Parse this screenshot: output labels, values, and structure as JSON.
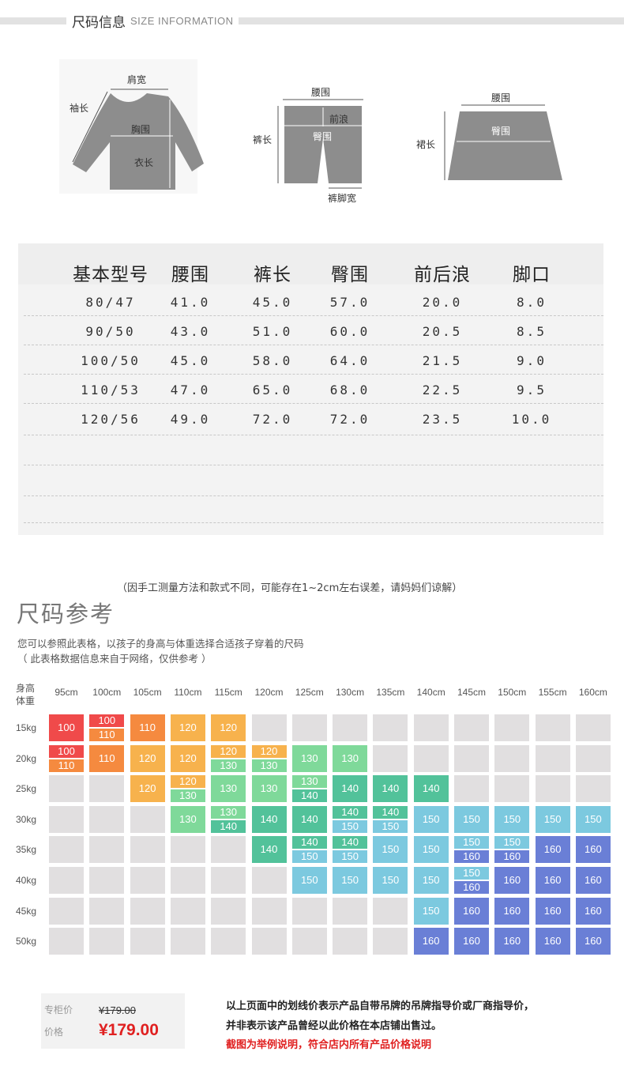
{
  "header": {
    "title": "尺码信息",
    "subtitle": "SIZE INFORMATION"
  },
  "diagrams": {
    "top": {
      "shoulder": "肩宽",
      "sleeve": "袖长",
      "chest": "胸围",
      "length": "衣长"
    },
    "pants": {
      "waist": "腰围",
      "rise": "前浪",
      "length": "裤长",
      "hip": "臀围",
      "leg_opening": "裤脚宽"
    },
    "skirt": {
      "waist": "腰围",
      "hip": "臀围",
      "length": "裙长"
    }
  },
  "size_table": {
    "headers": [
      "基本型号",
      "腰围",
      "裤长",
      "臀围",
      "前后浪",
      "脚口"
    ],
    "rows": [
      [
        "80/47",
        "41.0",
        "45.0",
        "57.0",
        "20.0",
        "8.0"
      ],
      [
        "90/50",
        "43.0",
        "51.0",
        "60.0",
        "20.5",
        "8.5"
      ],
      [
        "100/50",
        "45.0",
        "58.0",
        "64.0",
        "21.5",
        "9.0"
      ],
      [
        "110/53",
        "47.0",
        "65.0",
        "68.0",
        "22.5",
        "9.5"
      ],
      [
        "120/56",
        "49.0",
        "72.0",
        "72.0",
        "23.5",
        "10.0"
      ]
    ]
  },
  "note": "（因手工测量方法和款式不同，可能存在1~2cm左右误差，请妈妈们谅解）",
  "reference": {
    "title": "尺码参考",
    "desc": "您可以参照此表格，以孩子的身高与体重选择合适孩子穿着的尺码",
    "source": "（ 此表格数据信息来自于网络，仅供参考 ）",
    "corner_line1": "身高",
    "corner_line2": "体重",
    "heights": [
      "95cm",
      "100cm",
      "105cm",
      "110cm",
      "115cm",
      "120cm",
      "125cm",
      "130cm",
      "135cm",
      "140cm",
      "145cm",
      "150cm",
      "155cm",
      "160cm"
    ],
    "weights": [
      "15kg",
      "20kg",
      "25kg",
      "30kg",
      "35kg",
      "40kg",
      "45kg",
      "50kg"
    ],
    "grid": [
      [
        "100",
        "100/110",
        "110",
        "120",
        "120",
        "",
        "",
        "",
        "",
        "",
        "",
        "",
        "",
        ""
      ],
      [
        "100/110",
        "110",
        "120",
        "120",
        "120/130",
        "120/130",
        "130",
        "130",
        "",
        "",
        "",
        "",
        "",
        ""
      ],
      [
        "",
        "",
        "120",
        "120/130",
        "130",
        "130",
        "130/140",
        "140",
        "140",
        "140",
        "",
        "",
        "",
        ""
      ],
      [
        "",
        "",
        "",
        "130",
        "130/140",
        "140",
        "140",
        "140/150",
        "140/150",
        "150",
        "150",
        "150",
        "150",
        "150"
      ],
      [
        "",
        "",
        "",
        "",
        "",
        "140",
        "140/150",
        "140/150",
        "150",
        "150",
        "150/160",
        "150/160",
        "160",
        "160"
      ],
      [
        "",
        "",
        "",
        "",
        "",
        "",
        "150",
        "150",
        "150",
        "150",
        "150/160",
        "160",
        "160",
        "160"
      ],
      [
        "",
        "",
        "",
        "",
        "",
        "",
        "",
        "",
        "",
        "150",
        "160",
        "160",
        "160",
        "160"
      ],
      [
        "",
        "",
        "",
        "",
        "",
        "",
        "",
        "",
        "",
        "160",
        "160",
        "160",
        "160",
        "160"
      ]
    ],
    "colors": {
      "100": "#f04a4a",
      "110": "#f58a3f",
      "120": "#f7b24d",
      "130": "#7fd99a",
      "140": "#52c29a",
      "150": "#7cc9df",
      "160": "#6a7fd6",
      "empty": "#e1dfe0"
    }
  },
  "price": {
    "counter_label": "专柜价",
    "counter_value": "¥179.00",
    "price_label": "价格",
    "price_value": "¥179.00"
  },
  "disclaimer": [
    "以上页面中的划线价表示产品自带吊牌的吊牌指导价或厂商指导价，",
    "并非表示该产品曾经以此价格在本店铺出售过。",
    "截图为举例说明，符合店内所有产品价格说明"
  ]
}
